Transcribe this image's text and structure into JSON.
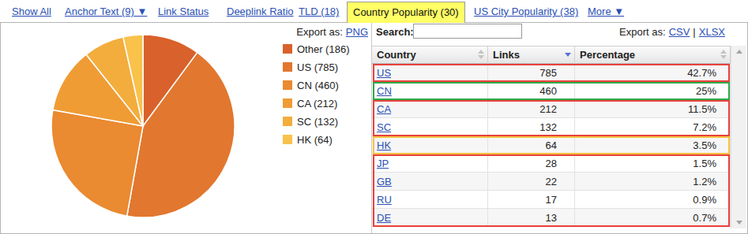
{
  "chart_data": {
    "type": "pie",
    "categories": [
      "Other (186)",
      "US (785)",
      "CN (460)",
      "CA (212)",
      "SC (132)",
      "HK (64)"
    ],
    "values": [
      186,
      785,
      460,
      212,
      132,
      64
    ],
    "colors": [
      "#d9612b",
      "#e2772f",
      "#ea8a31",
      "#ef9c35",
      "#f3ad3c",
      "#f8c24b"
    ],
    "legend": "right"
  },
  "tabs": [
    {
      "label": "Show All"
    },
    {
      "label": "Anchor Text (9) ▼"
    },
    {
      "label": "Link Status"
    },
    {
      "label": "Deeplink Ratio"
    },
    {
      "label": "TLD (18)"
    },
    {
      "label": "Country Popularity (30)",
      "active": true
    },
    {
      "label": "US City Popularity (38)"
    },
    {
      "label": "More ▼"
    }
  ],
  "chart_export": {
    "label": "Export as:",
    "links": [
      "PNG"
    ]
  },
  "search_label": "Search:",
  "table_export": {
    "label": "Export as:",
    "links": [
      "CSV",
      "XLSX"
    ],
    "separator": "|"
  },
  "table": {
    "columns": [
      "Country",
      "Links",
      "Percentage"
    ],
    "sorted_column": "Links",
    "groups": [
      {
        "color": "#e8413c",
        "rows": [
          [
            "US",
            785,
            "42.7%"
          ]
        ]
      },
      {
        "color": "#2ea84a",
        "rows": [
          [
            "CN",
            460,
            "25%"
          ]
        ]
      },
      {
        "color": "#e8413c",
        "rows": [
          [
            "CA",
            212,
            "11.5%"
          ],
          [
            "SC",
            132,
            "7.2%"
          ]
        ]
      },
      {
        "color": "#f5c242",
        "rows": [
          [
            "HK",
            64,
            "3.5%"
          ]
        ]
      },
      {
        "color": "#e8413c",
        "rows": [
          [
            "JP",
            28,
            "1.5%"
          ],
          [
            "GB",
            22,
            "1.2%"
          ],
          [
            "RU",
            17,
            "0.9%"
          ],
          [
            "DE",
            13,
            "0.7%"
          ]
        ]
      }
    ]
  }
}
